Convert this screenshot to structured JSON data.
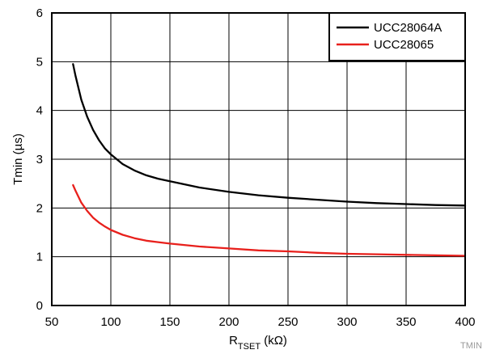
{
  "chart_data": {
    "type": "line",
    "xlabel": {
      "main": "R",
      "sub": "TSET",
      "unit": " (kΩ)"
    },
    "ylabel": "Tmin (µs)",
    "xlim": [
      50,
      400
    ],
    "ylim": [
      0,
      6
    ],
    "x_ticks": [
      50,
      100,
      150,
      200,
      250,
      300,
      350,
      400
    ],
    "y_ticks": [
      0,
      1,
      2,
      3,
      4,
      5,
      6
    ],
    "grid": true,
    "legend_position": "top-right",
    "series": [
      {
        "name": "UCC28064A",
        "color": "#000000",
        "x": [
          68,
          70,
          75,
          80,
          85,
          90,
          95,
          100,
          110,
          120,
          130,
          140,
          150,
          175,
          200,
          225,
          250,
          275,
          300,
          325,
          350,
          375,
          400
        ],
        "y": [
          4.95,
          4.72,
          4.22,
          3.87,
          3.6,
          3.39,
          3.22,
          3.1,
          2.9,
          2.77,
          2.67,
          2.6,
          2.55,
          2.42,
          2.33,
          2.26,
          2.21,
          2.17,
          2.13,
          2.1,
          2.08,
          2.06,
          2.05
        ]
      },
      {
        "name": "UCC28065",
        "color": "#e8201c",
        "x": [
          68,
          70,
          75,
          80,
          85,
          90,
          95,
          100,
          110,
          120,
          130,
          140,
          150,
          175,
          200,
          225,
          250,
          275,
          300,
          325,
          350,
          375,
          400
        ],
        "y": [
          2.47,
          2.36,
          2.11,
          1.94,
          1.8,
          1.7,
          1.62,
          1.55,
          1.45,
          1.38,
          1.33,
          1.3,
          1.27,
          1.21,
          1.17,
          1.13,
          1.11,
          1.08,
          1.06,
          1.05,
          1.04,
          1.03,
          1.02
        ]
      }
    ]
  },
  "watermark": "TMIN"
}
